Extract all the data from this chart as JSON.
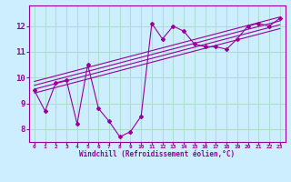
{
  "title": "",
  "xlabel": "Windchill (Refroidissement éolien,°C)",
  "ylabel": "",
  "bg_color": "#cceeff",
  "line_color": "#990099",
  "grid_color": "#aaddcc",
  "xlim": [
    -0.5,
    23.5
  ],
  "ylim": [
    7.5,
    12.8
  ],
  "yticks": [
    8,
    9,
    10,
    11,
    12
  ],
  "xticks": [
    0,
    1,
    2,
    3,
    4,
    5,
    6,
    7,
    8,
    9,
    10,
    11,
    12,
    13,
    14,
    15,
    16,
    17,
    18,
    19,
    20,
    21,
    22,
    23
  ],
  "scatter_x": [
    0,
    1,
    2,
    3,
    4,
    5,
    6,
    7,
    8,
    9,
    10,
    11,
    12,
    13,
    14,
    15,
    16,
    17,
    18,
    19,
    20,
    21,
    22,
    23
  ],
  "scatter_y": [
    9.5,
    8.7,
    9.8,
    9.9,
    8.2,
    10.5,
    8.8,
    8.3,
    7.7,
    7.9,
    8.5,
    12.1,
    11.5,
    12.0,
    11.8,
    11.3,
    11.2,
    11.2,
    11.1,
    11.5,
    12.0,
    12.1,
    12.0,
    12.3
  ],
  "reg_lines": [
    {
      "x": [
        0,
        23
      ],
      "y": [
        9.55,
        12.05
      ]
    },
    {
      "x": [
        0,
        23
      ],
      "y": [
        9.7,
        12.2
      ]
    },
    {
      "x": [
        0,
        23
      ],
      "y": [
        9.85,
        12.35
      ]
    },
    {
      "x": [
        0,
        23
      ],
      "y": [
        9.4,
        11.9
      ]
    }
  ]
}
